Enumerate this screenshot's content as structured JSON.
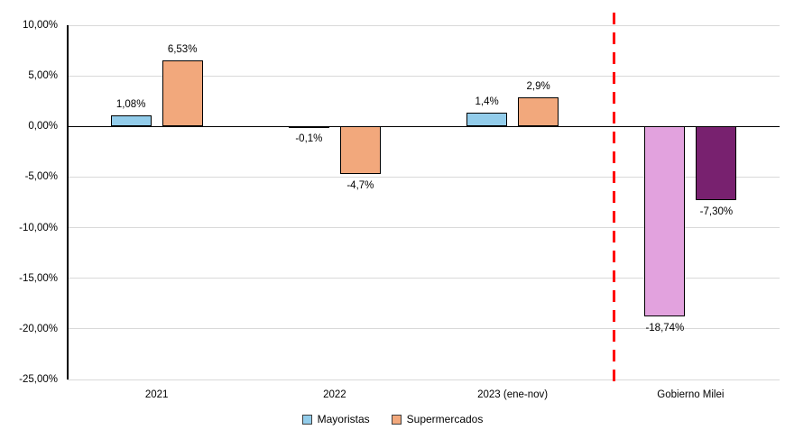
{
  "chart_data": {
    "type": "bar",
    "title": "",
    "categories": [
      "2021",
      "2022",
      "2023 (ene-nov)",
      "Gobierno Milei"
    ],
    "series": [
      {
        "name": "Mayoristas",
        "values": [
          1.08,
          -0.1,
          1.4,
          -18.74
        ],
        "data_labels": [
          "1,08%",
          "-0,1%",
          "1,4%",
          "-18,74%"
        ],
        "bar_colors": [
          "#92CCEA",
          "#92CCEA",
          "#92CCEA",
          "#E2A2DE"
        ],
        "legend_color": "#92CCEA"
      },
      {
        "name": "Supermercados",
        "values": [
          6.53,
          -4.7,
          2.9,
          -7.3
        ],
        "data_labels": [
          "6,53%",
          "-4,7%",
          "2,9%",
          "-7,30%"
        ],
        "bar_colors": [
          "#F2A87C",
          "#F2A87C",
          "#F2A87C",
          "#78216F"
        ],
        "legend_color": "#F2A87C"
      }
    ],
    "y_axis": {
      "min": -25,
      "max": 10,
      "tick_values": [
        10,
        5,
        0,
        -5,
        -10,
        -15,
        -20,
        -25
      ],
      "tick_labels": [
        "10,00%",
        "5,00%",
        "0,00%",
        "-5,00%",
        "-10,00%",
        "-15,00%",
        "-20,00%",
        "-25,00%"
      ]
    },
    "grid": true,
    "gridline_color": "#D9D9D9",
    "axis_color": "#000000",
    "bar_border_color": "#000000",
    "background_color": "#FFFFFF",
    "separator": {
      "style": "dashed",
      "color": "#FF0000",
      "between_categories": [
        "2023 (ene-nov)",
        "Gobierno Milei"
      ]
    },
    "legend": {
      "position": "bottom",
      "entries": [
        "Mayoristas",
        "Supermercados"
      ]
    }
  }
}
